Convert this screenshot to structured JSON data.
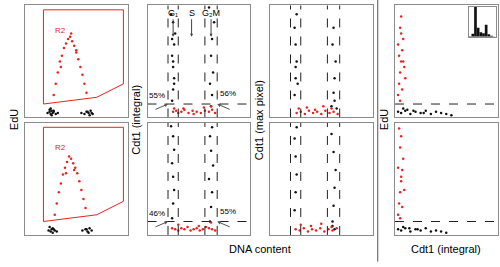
{
  "chart_data": {
    "type": "scatter",
    "tick_labels": false,
    "xlim": [
      0,
      100
    ],
    "ylim": [
      0,
      100
    ],
    "xticks": [],
    "yticks": [],
    "ylabels": [
      "EdU",
      "Cdt1 (integral)",
      "Cdt1 (max pixel)",
      "EdU"
    ],
    "xlabels": [
      {
        "text": "DNA content",
        "columns": [
          2,
          3
        ]
      },
      {
        "text": "Cdt1 (integral)",
        "columns": [
          4
        ]
      }
    ],
    "panels": [
      {
        "column": 1,
        "row": 1,
        "gate": {
          "name": "R2",
          "color": "#e8221e",
          "x": [
            18,
            18,
            96,
            96,
            70,
            18
          ],
          "y": [
            12,
            96,
            96,
            30,
            18,
            12
          ]
        },
        "series": [
          {
            "color": "#111111",
            "x": [
              22,
              24,
              25,
              26,
              27,
              28,
              30,
              32,
              24,
              26,
              28,
              25,
              55,
              58,
              60,
              62,
              64,
              66,
              63,
              61,
              65
            ],
            "y": [
              4,
              5,
              3,
              6,
              4,
              5,
              3,
              4,
              7,
              2,
              6,
              8,
              4,
              3,
              5,
              4,
              6,
              3,
              2,
              5,
              4
            ]
          },
          {
            "color": "#e8221e",
            "x": [
              28,
              30,
              32,
              34,
              36,
              38,
              40,
              42,
              44,
              46,
              48,
              50,
              52,
              54,
              56,
              58,
              60,
              35,
              45,
              50
            ],
            "y": [
              20,
              30,
              40,
              50,
              55,
              62,
              66,
              70,
              72,
              68,
              64,
              58,
              52,
              45,
              38,
              30,
              22,
              45,
              75,
              60
            ]
          }
        ]
      },
      {
        "column": 2,
        "row": 1,
        "vlines": [
          20,
          30,
          56,
          68
        ],
        "hline": 12,
        "phase_labels": [
          "G₁",
          "S",
          "G₂M"
        ],
        "percentages": [
          {
            "value": 55,
            "label": "55%"
          },
          {
            "value": 56,
            "label": "56%"
          }
        ],
        "series": [
          {
            "color": "#111111",
            "x": [
              24,
              25,
              26,
              25,
              24,
              26,
              27,
              25,
              23,
              26,
              25,
              24,
              62,
              63,
              61,
              64,
              62,
              63,
              65,
              60
            ],
            "y": [
              15,
              25,
              35,
              45,
              55,
              65,
              75,
              85,
              92,
              30,
              50,
              70,
              10,
              20,
              30,
              40,
              55,
              70,
              85,
              98
            ]
          },
          {
            "color": "#e8221e",
            "x": [
              25,
              28,
              30,
              33,
              36,
              40,
              44,
              48,
              52,
              56,
              60,
              63,
              66,
              35,
              45,
              55,
              62,
              26
            ],
            "y": [
              5,
              6,
              4,
              5,
              7,
              4,
              6,
              5,
              4,
              6,
              5,
              7,
              4,
              8,
              3,
              9,
              10,
              8
            ]
          }
        ]
      },
      {
        "column": 3,
        "row": 1,
        "vlines": [
          20,
          30,
          56,
          68
        ],
        "series": [
          {
            "color": "#111111",
            "x": [
              24,
              25,
              26,
              25,
              24,
              26,
              25,
              27,
              60,
              62,
              63,
              64,
              61,
              62,
              65,
              63
            ],
            "y": [
              20,
              35,
              50,
              65,
              80,
              92,
              45,
              30,
              10,
              22,
              35,
              50,
              65,
              80,
              8,
              15
            ]
          },
          {
            "color": "#e8221e",
            "x": [
              26,
              30,
              34,
              38,
              42,
              46,
              50,
              54,
              58,
              62,
              66,
              28,
              36,
              44,
              52,
              60
            ],
            "y": [
              4,
              5,
              3,
              6,
              4,
              5,
              3,
              6,
              4,
              5,
              3,
              8,
              9,
              7,
              10,
              8
            ]
          }
        ]
      },
      {
        "column": 4,
        "row": 1,
        "hline": 12,
        "inset": {
          "type": "histogram",
          "color": "#111111",
          "bins": [
            0,
            10,
            20,
            30,
            40,
            50,
            60,
            70,
            80,
            90,
            100
          ],
          "counts": [
            2,
            10,
            100,
            30,
            15,
            12,
            40,
            8,
            3,
            1
          ],
          "ylim": [
            0,
            100
          ]
        },
        "series": [
          {
            "color": "#111111",
            "x": [
              3,
              6,
              10,
              15,
              20,
              25,
              30,
              35,
              40,
              45,
              50,
              55,
              8,
              12,
              18,
              28
            ],
            "y": [
              5,
              4,
              6,
              3,
              5,
              4,
              6,
              3,
              5,
              4,
              3,
              2,
              8,
              7,
              6,
              4
            ]
          },
          {
            "color": "#e8221e",
            "x": [
              3,
              4,
              5,
              6,
              7,
              8,
              5,
              6,
              4,
              9,
              10,
              3,
              7,
              6,
              5,
              8
            ],
            "y": [
              20,
              30,
              40,
              50,
              60,
              70,
              80,
              90,
              55,
              45,
              35,
              65,
              25,
              75,
              15,
              50
            ]
          }
        ]
      },
      {
        "column": 1,
        "row": 2,
        "gate": {
          "name": "R2",
          "color": "#e8221e",
          "x": [
            18,
            18,
            96,
            96,
            70,
            18
          ],
          "y": [
            12,
            96,
            96,
            30,
            18,
            12
          ]
        },
        "series": [
          {
            "color": "#111111",
            "x": [
              23,
              25,
              26,
              27,
              29,
              31,
              24,
              27,
              28,
              56,
              59,
              61,
              63,
              65,
              62,
              60
            ],
            "y": [
              4,
              3,
              5,
              6,
              4,
              3,
              7,
              2,
              5,
              4,
              5,
              3,
              6,
              4,
              2,
              5
            ]
          },
          {
            "color": "#e8221e",
            "x": [
              29,
              31,
              33,
              35,
              37,
              39,
              41,
              43,
              45,
              47,
              49,
              51,
              53,
              55,
              57,
              59,
              40,
              48
            ],
            "y": [
              18,
              28,
              38,
              46,
              54,
              60,
              65,
              70,
              68,
              64,
              60,
              55,
              48,
              40,
              32,
              24,
              55,
              58
            ]
          }
        ]
      },
      {
        "column": 2,
        "row": 2,
        "vlines": [
          20,
          30,
          56,
          68
        ],
        "hline": 12,
        "percentages": [
          {
            "value": 46,
            "label": "46%"
          },
          {
            "value": 55,
            "label": "55%"
          }
        ],
        "series": [
          {
            "color": "#111111",
            "x": [
              24,
              25,
              26,
              25,
              24,
              26,
              25,
              23,
              61,
              62,
              63,
              60,
              64,
              62,
              61,
              63
            ],
            "y": [
              15,
              28,
              40,
              52,
              64,
              76,
              88,
              97,
              12,
              25,
              38,
              50,
              62,
              75,
              88,
              96
            ]
          },
          {
            "color": "#e8221e",
            "x": [
              24,
              27,
              30,
              33,
              36,
              39,
              42,
              45,
              48,
              51,
              54,
              57,
              60,
              63,
              66,
              30,
              50,
              62
            ],
            "y": [
              6,
              5,
              4,
              6,
              5,
              7,
              4,
              5,
              6,
              4,
              5,
              7,
              6,
              5,
              4,
              9,
              8,
              11
            ]
          }
        ]
      },
      {
        "column": 3,
        "row": 2,
        "vlines": [
          20,
          30,
          56,
          68
        ],
        "series": [
          {
            "color": "#111111",
            "x": [
              24,
              25,
              26,
              25,
              24,
              26,
              61,
              62,
              63,
              64,
              62,
              60,
              63,
              61
            ],
            "y": [
              22,
              38,
              54,
              70,
              86,
              96,
              12,
              26,
              42,
              58,
              74,
              90,
              5,
              8
            ]
          },
          {
            "color": "#e8221e",
            "x": [
              25,
              29,
              33,
              37,
              41,
              45,
              49,
              53,
              57,
              61,
              65,
              30,
              40,
              50,
              60
            ],
            "y": [
              5,
              4,
              6,
              3,
              5,
              4,
              6,
              3,
              5,
              4,
              6,
              9,
              8,
              10,
              7
            ]
          }
        ]
      },
      {
        "column": 4,
        "row": 2,
        "hline": 12,
        "series": [
          {
            "color": "#111111",
            "x": [
              3,
              6,
              10,
              15,
              20,
              25,
              30,
              35,
              40,
              45,
              50,
              8,
              14,
              22
            ],
            "y": [
              5,
              4,
              6,
              3,
              5,
              4,
              6,
              3,
              4,
              3,
              2,
              7,
              6,
              5
            ]
          },
          {
            "color": "#e8221e",
            "x": [
              3,
              4,
              5,
              6,
              7,
              8,
              5,
              6,
              4,
              9,
              3,
              7,
              6,
              5
            ],
            "y": [
              18,
              28,
              38,
              48,
              58,
              68,
              78,
              88,
              95,
              40,
              60,
              25,
              52,
              15
            ]
          }
        ]
      }
    ]
  }
}
